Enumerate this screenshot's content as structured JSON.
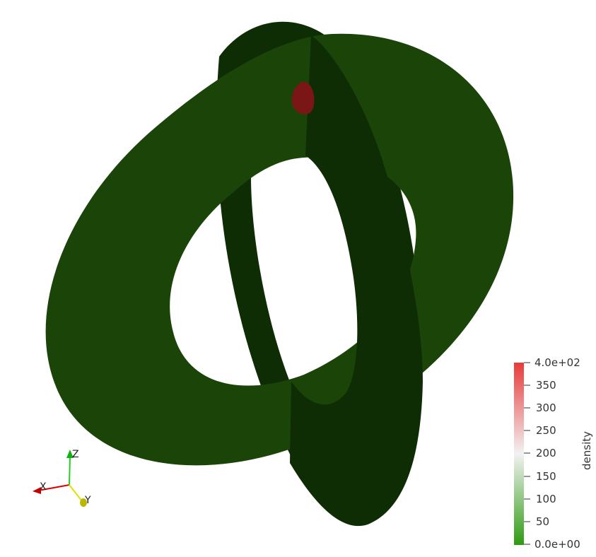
{
  "colorbar": {
    "title": "density",
    "colors": {
      "max": "#e83a3a",
      "mid": "#f2f2f2",
      "min": "#2e9a12"
    },
    "ticks": [
      {
        "label": "4.0e+02",
        "value": 400
      },
      {
        "label": "350",
        "value": 350
      },
      {
        "label": "300",
        "value": 300
      },
      {
        "label": "250",
        "value": 250
      },
      {
        "label": "200",
        "value": 200
      },
      {
        "label": "150",
        "value": 150
      },
      {
        "label": "100",
        "value": 100
      },
      {
        "label": "50",
        "value": 50
      },
      {
        "label": "0.0e+00",
        "value": 0
      }
    ]
  },
  "orientation_axes": {
    "x_label": "X",
    "y_label": "Y",
    "z_label": "Z",
    "x_color": "#e00000",
    "y_color": "#e0e000",
    "z_color": "#20d020"
  },
  "scene": {
    "horizontal_ring_color": "#1b4409",
    "vertical_ring_color": "#0f2d05",
    "hotspot_color": "#7a1616"
  }
}
